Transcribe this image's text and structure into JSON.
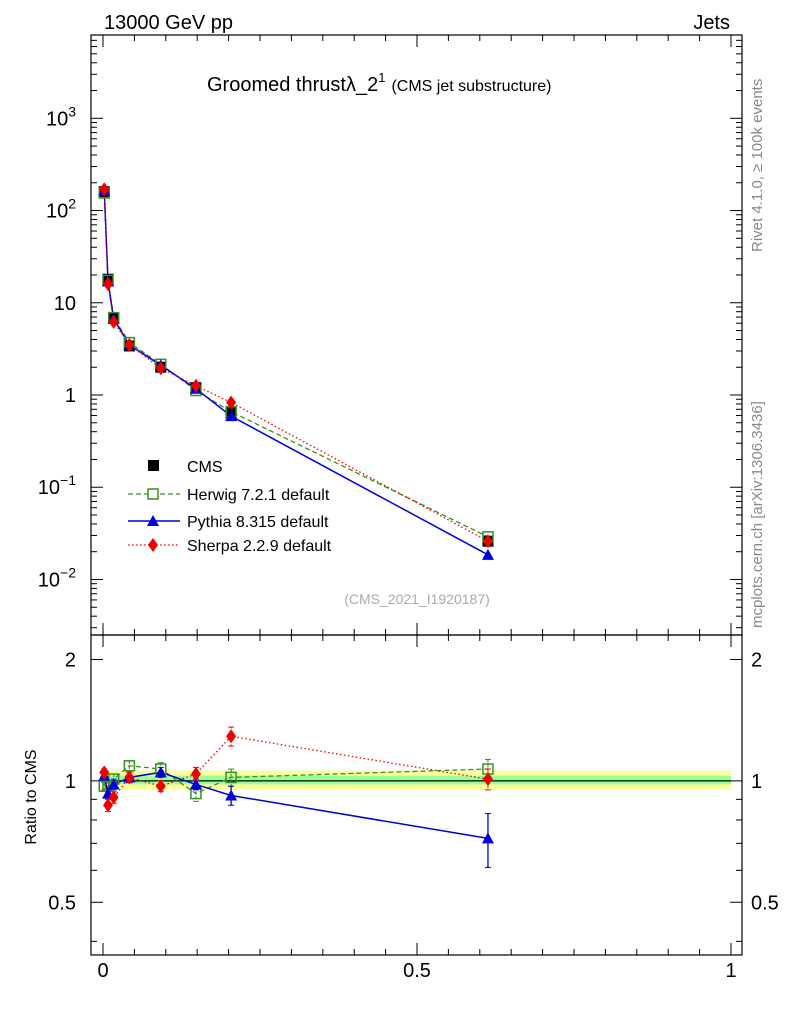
{
  "header": {
    "energy_label": "13000 GeV pp",
    "process_label": "Jets"
  },
  "side_labels": {
    "rivet": "Rivet 4.1.0, ≥ 100k events",
    "mcplots": "mcplots.cern.ch [arXiv:1306.3436]"
  },
  "chart_data": [
    {
      "type": "line",
      "scale": "log",
      "title_main": "Groomed thrust",
      "title_lambda": "λ_2",
      "title_sup": "1",
      "title_sub": "(CMS jet substructure)",
      "watermark": "(CMS_2021_I1920187)",
      "xlim": [
        0,
        1
      ],
      "ylim": [
        0.0025,
        8000
      ],
      "ytick_labels": [
        {
          "value": 0.01,
          "mantissa": "10",
          "exp": "−2"
        },
        {
          "value": 0.1,
          "mantissa": "10",
          "exp": "−1"
        },
        {
          "value": 1,
          "mantissa": "1",
          "exp": ""
        },
        {
          "value": 10,
          "mantissa": "10",
          "exp": ""
        },
        {
          "value": 100,
          "mantissa": "10",
          "exp": "2"
        },
        {
          "value": 1000,
          "mantissa": "10",
          "exp": "3"
        }
      ],
      "x": [
        0.002,
        0.008,
        0.017,
        0.042,
        0.092,
        0.148,
        0.204,
        0.613
      ],
      "series": [
        {
          "name": "CMS",
          "style": "data",
          "color": "#000000",
          "values": [
            160,
            18,
            6.8,
            3.4,
            2.0,
            1.2,
            0.64,
            0.026
          ]
        },
        {
          "name": "Herwig 7.2.1 default",
          "style": "herwig",
          "color": "#3a8f1e",
          "values": [
            155,
            17.5,
            6.9,
            3.7,
            2.15,
            1.12,
            0.66,
            0.029
          ]
        },
        {
          "name": "Pythia 8.315 default",
          "style": "pythia",
          "color": "#0000dd",
          "values": [
            165,
            17,
            6.7,
            3.5,
            2.1,
            1.17,
            0.59,
            0.0185
          ]
        },
        {
          "name": "Sherpa 2.2.9 default",
          "style": "sherpa",
          "color": "#ee0000",
          "values": [
            170,
            16,
            6.2,
            3.5,
            1.95,
            1.26,
            0.83,
            0.026
          ]
        }
      ]
    },
    {
      "type": "line",
      "ylabel": "Ratio to CMS",
      "xlim": [
        0,
        1
      ],
      "ylim": [
        0.37,
        2.3
      ],
      "ytick_labels": [
        {
          "value": 0.5,
          "label": "0.5"
        },
        {
          "value": 1,
          "label": "1"
        },
        {
          "value": 2,
          "label": "2"
        }
      ],
      "xtick_labels": [
        {
          "value": 0,
          "label": "0"
        },
        {
          "value": 0.5,
          "label": "0.5"
        },
        {
          "value": 1,
          "label": "1"
        }
      ],
      "band_inner": [
        0.98,
        1.03
      ],
      "band_outer": [
        0.95,
        1.06
      ],
      "x": [
        0.002,
        0.008,
        0.017,
        0.042,
        0.092,
        0.148,
        0.204,
        0.613
      ],
      "series": [
        {
          "name": "Herwig 7.2.1 default",
          "style": "herwig",
          "color": "#3a8f1e",
          "values": [
            0.97,
            0.97,
            1.01,
            1.09,
            1.07,
            0.93,
            1.02,
            1.07
          ],
          "errors": [
            0.02,
            0.03,
            0.03,
            0.03,
            0.04,
            0.04,
            0.05,
            0.06
          ]
        },
        {
          "name": "Pythia 8.315 default",
          "style": "pythia",
          "color": "#0000dd",
          "values": [
            1.03,
            0.93,
            0.98,
            1.02,
            1.05,
            0.98,
            0.92,
            0.72
          ],
          "errors": [
            0.02,
            0.03,
            0.03,
            0.03,
            0.03,
            0.03,
            0.05,
            0.11
          ]
        },
        {
          "name": "Sherpa 2.2.9 default",
          "style": "sherpa",
          "color": "#ee0000",
          "values": [
            1.05,
            0.87,
            0.91,
            1.02,
            0.97,
            1.04,
            1.29,
            1.01
          ],
          "errors": [
            0.02,
            0.03,
            0.03,
            0.03,
            0.03,
            0.04,
            0.07,
            0.06
          ]
        }
      ]
    }
  ]
}
